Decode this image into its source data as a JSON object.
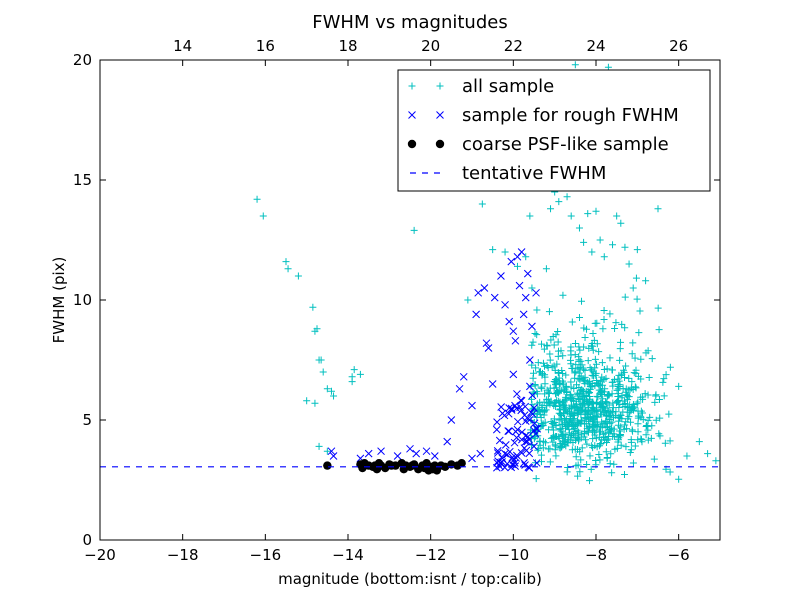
{
  "chart_data": {
    "type": "scatter",
    "title": "FWHM vs magnitudes",
    "xlabel": "magnitude (bottom:isnt / top:calib)",
    "ylabel": "FWHM (pix)",
    "xlim": [
      -20,
      -5
    ],
    "ylim": [
      0,
      20
    ],
    "x_ticks": [
      -20,
      -18,
      -16,
      -14,
      -12,
      -10,
      -8,
      -6
    ],
    "x_tick_labels": [
      "−20",
      "−18",
      "−16",
      "−14",
      "−12",
      "−10",
      "−8",
      "−6"
    ],
    "y_ticks": [
      0,
      5,
      10,
      15,
      20
    ],
    "y_tick_labels": [
      "0",
      "5",
      "10",
      "15",
      "20"
    ],
    "top_axis": {
      "ticks": [
        14,
        16,
        18,
        20,
        22,
        24,
        26
      ],
      "tick_labels": [
        "14",
        "16",
        "18",
        "20",
        "22",
        "24",
        "26"
      ],
      "offset": 32
    },
    "grid": false,
    "legend_position": "top-right",
    "series": [
      {
        "name": "all sample",
        "marker": "plus",
        "color": "#00BFBF",
        "points": [
          [
            -16.2,
            14.2
          ],
          [
            -16.05,
            13.5
          ],
          [
            -15.5,
            11.6
          ],
          [
            -15.45,
            11.3
          ],
          [
            -15.2,
            11.0
          ],
          [
            -15.0,
            5.8
          ],
          [
            -14.85,
            9.7
          ],
          [
            -14.8,
            8.7
          ],
          [
            -14.75,
            8.8
          ],
          [
            -14.7,
            7.5
          ],
          [
            -14.65,
            7.5
          ],
          [
            -14.6,
            7.0
          ],
          [
            -14.5,
            6.3
          ],
          [
            -14.4,
            6.2
          ],
          [
            -14.35,
            6.0
          ],
          [
            -14.8,
            5.7
          ],
          [
            -14.7,
            3.9
          ],
          [
            -14.5,
            3.7
          ],
          [
            -13.9,
            6.6
          ],
          [
            -13.85,
            7.1
          ],
          [
            -13.9,
            6.8
          ],
          [
            -13.7,
            6.9
          ],
          [
            -12.4,
            12.9
          ],
          [
            -11.1,
            10.0
          ],
          [
            -10.75,
            14.0
          ],
          [
            -10.5,
            12.1
          ],
          [
            -10.2,
            12.0
          ],
          [
            -9.9,
            11.4
          ],
          [
            -9.7,
            11.8
          ],
          [
            -9.6,
            13.5
          ],
          [
            -9.55,
            10.5
          ],
          [
            -9.2,
            11.3
          ],
          [
            -9.1,
            13.8
          ],
          [
            -9.0,
            14.5
          ],
          [
            -8.9,
            14.1
          ],
          [
            -8.8,
            10.2
          ],
          [
            -8.7,
            14.3
          ],
          [
            -8.6,
            13.5
          ],
          [
            -8.5,
            19.8
          ],
          [
            -8.4,
            13.0
          ],
          [
            -8.3,
            12.4
          ],
          [
            -8.2,
            13.6
          ],
          [
            -8.1,
            12.0
          ],
          [
            -8.0,
            13.7
          ],
          [
            -7.9,
            12.5
          ],
          [
            -7.8,
            11.8
          ],
          [
            -7.7,
            19.7
          ],
          [
            -7.6,
            12.3
          ],
          [
            -7.5,
            13.5
          ],
          [
            -7.4,
            13.2
          ],
          [
            -7.3,
            12.2
          ],
          [
            -7.2,
            11.5
          ],
          [
            -7.1,
            10.5
          ],
          [
            -7.0,
            12.1
          ],
          [
            -6.8,
            10.8
          ],
          [
            -6.5,
            13.8
          ],
          [
            -6.2,
            7.2
          ],
          [
            -6.0,
            6.4
          ],
          [
            -5.8,
            3.5
          ],
          [
            -5.5,
            4.1
          ],
          [
            -5.3,
            3.6
          ],
          [
            -5.1,
            3.3
          ]
        ],
        "cluster": {
          "x_range": [
            -9.6,
            -5.0
          ],
          "y_range": [
            2.4,
            11.0
          ],
          "peak_x": -8.3,
          "peak_y": 5.0,
          "count": 900
        }
      },
      {
        "name": "sample for rough FWHM",
        "marker": "x",
        "color": "#0000FF",
        "points": [
          [
            -14.4,
            3.7
          ],
          [
            -14.35,
            3.5
          ],
          [
            -13.7,
            3.4
          ],
          [
            -13.5,
            3.6
          ],
          [
            -13.2,
            3.7
          ],
          [
            -12.8,
            3.5
          ],
          [
            -12.5,
            3.8
          ],
          [
            -12.35,
            3.6
          ],
          [
            -12.1,
            3.7
          ],
          [
            -11.9,
            3.5
          ],
          [
            -11.6,
            4.1
          ],
          [
            -11.5,
            5.0
          ],
          [
            -11.3,
            6.3
          ],
          [
            -11.2,
            6.8
          ],
          [
            -11.0,
            5.6
          ],
          [
            -10.9,
            9.4
          ],
          [
            -10.85,
            10.3
          ],
          [
            -10.7,
            10.5
          ],
          [
            -10.65,
            8.2
          ],
          [
            -10.6,
            8.0
          ],
          [
            -10.5,
            6.5
          ],
          [
            -10.45,
            10.1
          ],
          [
            -10.3,
            11.0
          ],
          [
            -10.2,
            9.8
          ],
          [
            -10.1,
            9.1
          ],
          [
            -10.05,
            11.6
          ],
          [
            -10.0,
            8.7
          ],
          [
            -9.95,
            8.3
          ],
          [
            -9.9,
            11.8
          ],
          [
            -9.85,
            10.6
          ],
          [
            -9.8,
            12.0
          ],
          [
            -9.75,
            9.4
          ],
          [
            -9.7,
            10.1
          ],
          [
            -9.65,
            11.1
          ],
          [
            -9.6,
            7.5
          ],
          [
            -9.55,
            8.9
          ],
          [
            -9.5,
            5.5
          ],
          [
            -9.45,
            10.3
          ],
          [
            -10.4,
            4.6
          ],
          [
            -10.2,
            3.6
          ],
          [
            -10.1,
            5.5
          ],
          [
            -10.0,
            6.9
          ],
          [
            -9.9,
            4.6
          ],
          [
            -9.8,
            5.8
          ],
          [
            -9.7,
            4.1
          ],
          [
            -9.6,
            6.4
          ],
          [
            -9.5,
            3.9
          ],
          [
            -10.8,
            3.6
          ],
          [
            -11.0,
            3.4
          ]
        ],
        "cluster": {
          "x_range": [
            -10.4,
            -9.4
          ],
          "y_range": [
            3.0,
            6.2
          ],
          "count": 70
        }
      },
      {
        "name": "coarse PSF-like sample",
        "marker": "circle",
        "color": "#000000",
        "points": [
          [
            -14.5,
            3.1
          ],
          [
            -13.7,
            3.15
          ],
          [
            -13.65,
            3.0
          ],
          [
            -13.6,
            3.2
          ],
          [
            -13.5,
            3.1
          ],
          [
            -13.4,
            3.05
          ],
          [
            -13.35,
            3.1
          ],
          [
            -13.3,
            2.95
          ],
          [
            -13.25,
            3.2
          ],
          [
            -13.2,
            3.1
          ],
          [
            -13.1,
            3.0
          ],
          [
            -13.0,
            3.15
          ],
          [
            -12.95,
            3.1
          ],
          [
            -12.7,
            3.2
          ],
          [
            -12.6,
            3.1
          ],
          [
            -12.65,
            2.95
          ],
          [
            -12.5,
            3.05
          ],
          [
            -12.45,
            3.1
          ],
          [
            -12.4,
            3.15
          ],
          [
            -12.3,
            2.95
          ],
          [
            -12.2,
            3.1
          ],
          [
            -12.15,
            3.0
          ],
          [
            -12.1,
            3.2
          ],
          [
            -12.05,
            2.9
          ],
          [
            -11.95,
            2.95
          ],
          [
            -11.85,
            2.9
          ],
          [
            -11.75,
            3.1
          ],
          [
            -11.65,
            3.05
          ],
          [
            -11.5,
            3.15
          ],
          [
            -11.35,
            3.1
          ],
          [
            -11.25,
            3.2
          ],
          [
            -12.85,
            3.1
          ],
          [
            -12.0,
            3.05
          ],
          [
            -11.9,
            3.1
          ]
        ]
      },
      {
        "name": "tentative FWHM",
        "type": "hline",
        "style": "dashed",
        "color": "#0000FF",
        "y": 3.05
      }
    ]
  }
}
